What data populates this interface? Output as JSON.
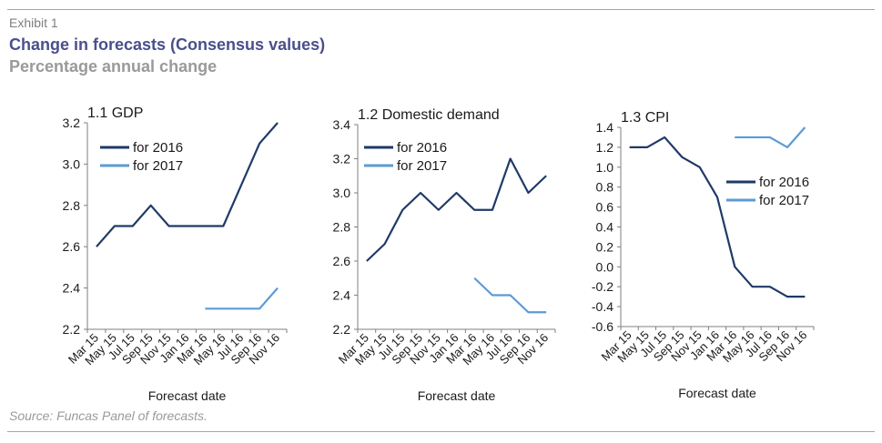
{
  "header": {
    "exhibit": "Exhibit 1",
    "title": "Change in forecasts (Consensus values)",
    "subtitle": "Percentage annual change"
  },
  "footer": {
    "source": "Source: Funcas Panel of forecasts."
  },
  "colors": {
    "for_2016": "#1f3a68",
    "for_2017": "#5b9bd5",
    "axis": "#7f7f7f"
  },
  "chart_data": [
    {
      "type": "line",
      "title": "1.1 GDP",
      "xlabel": "Forecast date",
      "ylabel": "",
      "ylim": [
        2.2,
        3.2
      ],
      "yticks": [
        "3.2",
        "3.0",
        "2.8",
        "2.6",
        "2.4",
        "2.2"
      ],
      "categories": [
        "Mar 15",
        "May 15",
        "Jul 15",
        "Sep 15",
        "Nov 15",
        "Jan 16",
        "Mar 16",
        "May 16",
        "Jul 16",
        "Sep 16",
        "Nov 16"
      ],
      "legend_position": "top-left",
      "grid": false,
      "series": [
        {
          "name": "for 2016",
          "values": [
            2.6,
            2.7,
            2.7,
            2.8,
            2.7,
            2.7,
            2.7,
            2.7,
            2.9,
            3.1,
            3.2
          ]
        },
        {
          "name": "for 2017",
          "values": [
            null,
            null,
            null,
            null,
            null,
            null,
            2.3,
            2.3,
            2.3,
            2.3,
            2.4
          ]
        }
      ]
    },
    {
      "type": "line",
      "title": "1.2 Domestic demand",
      "xlabel": "Forecast date",
      "ylabel": "",
      "ylim": [
        2.2,
        3.4
      ],
      "yticks": [
        "3.4",
        "3.2",
        "3.0",
        "2.8",
        "2.6",
        "2.4",
        "2.2"
      ],
      "categories": [
        "Mar 15",
        "May 15",
        "Jul 15",
        "Sep 15",
        "Nov 15",
        "Jan 16",
        "Mar 16",
        "May 16",
        "Jul 16",
        "Sep 16",
        "Nov 16"
      ],
      "legend_position": "top-left",
      "grid": false,
      "series": [
        {
          "name": "for 2016",
          "values": [
            2.6,
            2.7,
            2.9,
            3.0,
            2.9,
            3.0,
            2.9,
            2.9,
            3.2,
            3.0,
            3.1
          ]
        },
        {
          "name": "for 2017",
          "values": [
            null,
            null,
            null,
            null,
            null,
            null,
            2.5,
            2.4,
            2.4,
            2.3,
            2.3
          ]
        }
      ]
    },
    {
      "type": "line",
      "title": "1.3 CPI",
      "xlabel": "Forecast date",
      "ylabel": "",
      "ylim": [
        -0.6,
        1.4
      ],
      "yticks": [
        "1.4",
        "1.2",
        "1.0",
        "0.8",
        "0.6",
        "0.4",
        "0.2",
        "0.0",
        "-0.2",
        "-0.4",
        "-0.6"
      ],
      "categories": [
        "Mar 15",
        "May 15",
        "Jul 15",
        "Sep 15",
        "Nov 15",
        "Jan 16",
        "Mar 16",
        "May 16",
        "Jul 16",
        "Sep 16",
        "Nov 16"
      ],
      "legend_position": "right",
      "grid": false,
      "series": [
        {
          "name": "for 2016",
          "values": [
            1.2,
            1.2,
            1.3,
            1.1,
            1.0,
            0.7,
            0.0,
            -0.2,
            -0.2,
            -0.3,
            -0.3
          ]
        },
        {
          "name": "for 2017",
          "values": [
            null,
            null,
            null,
            null,
            null,
            null,
            1.3,
            1.3,
            1.3,
            1.2,
            1.4
          ]
        }
      ]
    }
  ]
}
